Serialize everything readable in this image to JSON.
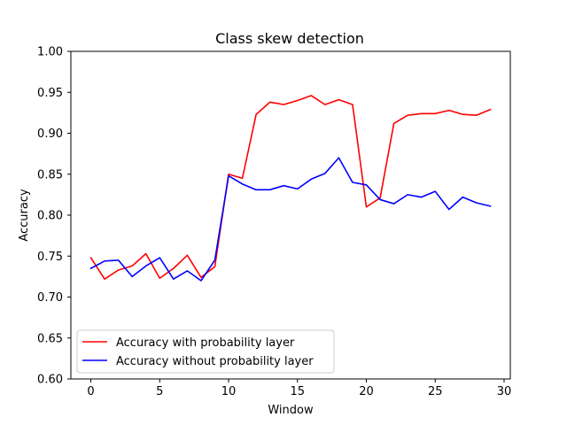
{
  "chart_data": {
    "type": "line",
    "title": "Class skew detection",
    "xlabel": "Window",
    "ylabel": "Accuracy",
    "xlim": [
      -1.45,
      30.45
    ],
    "ylim": [
      0.6,
      1.0
    ],
    "xticks": [
      0,
      5,
      10,
      15,
      20,
      25,
      30
    ],
    "yticks": [
      0.6,
      0.65,
      0.7,
      0.75,
      0.8,
      0.85,
      0.9,
      0.95,
      1.0
    ],
    "xtick_labels": [
      "0",
      "5",
      "10",
      "15",
      "20",
      "25",
      "30"
    ],
    "ytick_labels": [
      "0.60",
      "0.65",
      "0.70",
      "0.75",
      "0.80",
      "0.85",
      "0.90",
      "0.95",
      "1.00"
    ],
    "legend_position": "lower-left",
    "x": [
      0,
      1,
      2,
      3,
      4,
      5,
      6,
      7,
      8,
      9,
      10,
      11,
      12,
      13,
      14,
      15,
      16,
      17,
      18,
      19,
      20,
      21,
      22,
      23,
      24,
      25,
      26,
      27,
      28,
      29
    ],
    "series": [
      {
        "name": "Accuracy with probability layer",
        "color": "#ff0000",
        "values": [
          0.748,
          0.722,
          0.733,
          0.738,
          0.753,
          0.723,
          0.735,
          0.751,
          0.724,
          0.737,
          0.85,
          0.845,
          0.923,
          0.938,
          0.935,
          0.94,
          0.946,
          0.935,
          0.941,
          0.935,
          0.81,
          0.821,
          0.912,
          0.922,
          0.924,
          0.924,
          0.928,
          0.923,
          0.922,
          0.929
        ]
      },
      {
        "name": "Accuracy without probability layer",
        "color": "#0000ff",
        "values": [
          0.735,
          0.744,
          0.745,
          0.725,
          0.738,
          0.748,
          0.722,
          0.732,
          0.72,
          0.745,
          0.848,
          0.838,
          0.831,
          0.831,
          0.836,
          0.832,
          0.844,
          0.851,
          0.87,
          0.84,
          0.837,
          0.819,
          0.814,
          0.825,
          0.822,
          0.829,
          0.807,
          0.822,
          0.815,
          0.811
        ]
      }
    ]
  }
}
